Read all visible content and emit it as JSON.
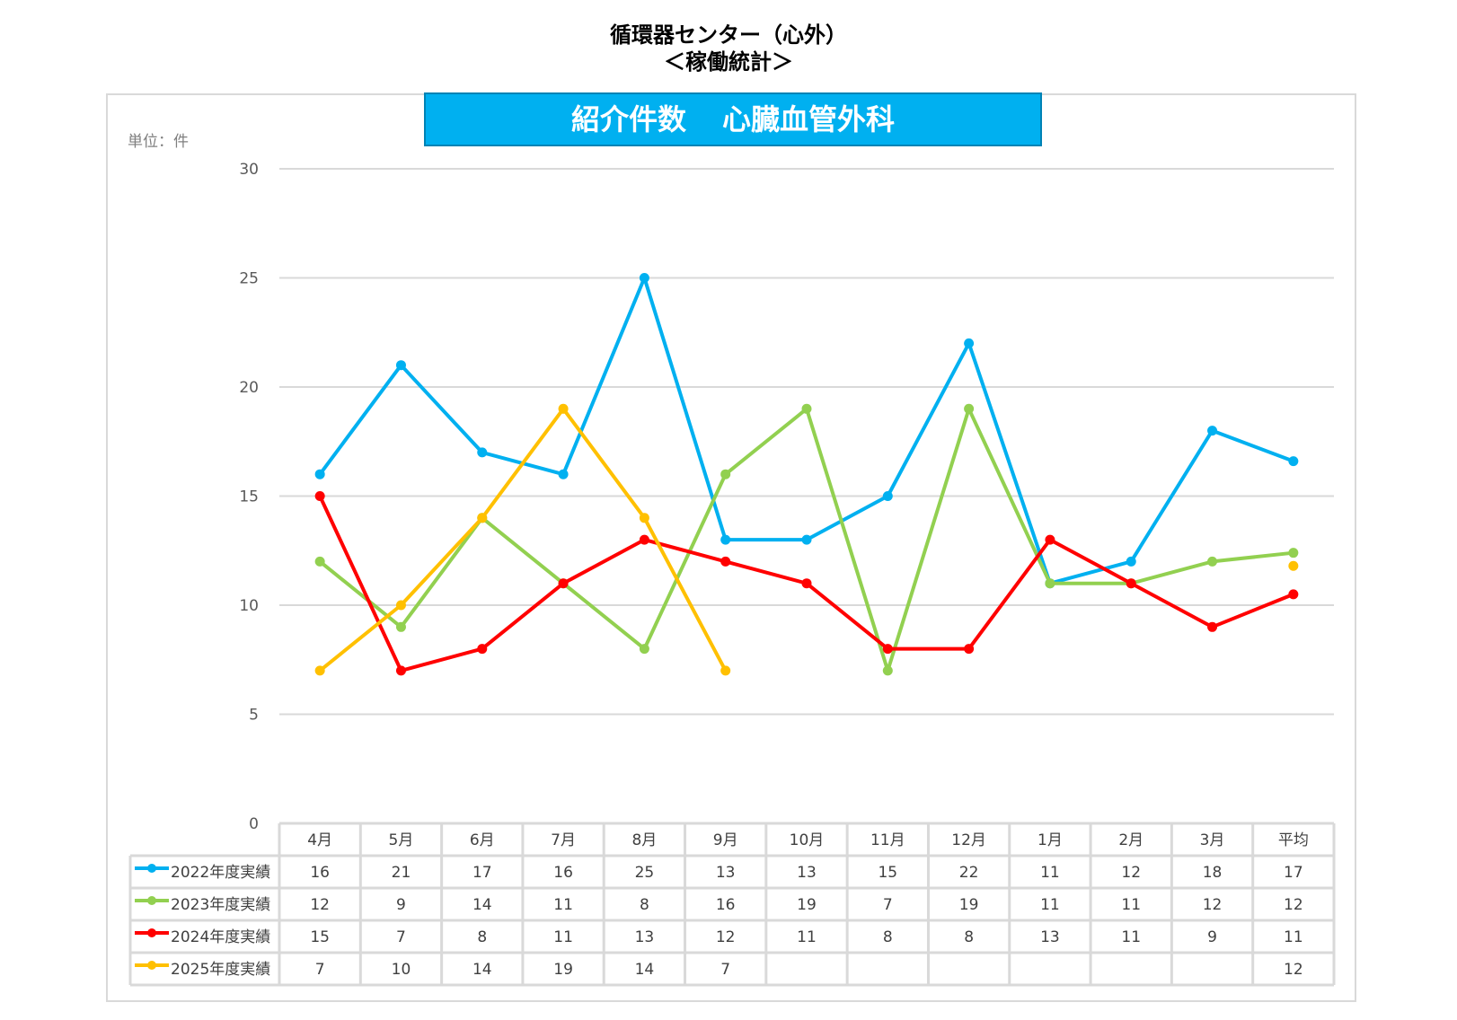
{
  "header": {
    "line1": "循環器センター（心外）",
    "line2": "＜稼働統計＞"
  },
  "banner": {
    "left": "紹介件数",
    "right": "心臓血管外科"
  },
  "unit_label": "単位：件",
  "chart_data": {
    "type": "line",
    "title": "紹介件数　心臓血管外科",
    "ylim": [
      0,
      30
    ],
    "yticks": [
      0,
      5,
      10,
      15,
      20,
      25,
      30
    ],
    "grid": true,
    "legend": "data-table-left",
    "categories": [
      "4月",
      "5月",
      "6月",
      "7月",
      "8月",
      "9月",
      "10月",
      "11月",
      "12月",
      "1月",
      "2月",
      "3月",
      "平均"
    ],
    "series": [
      {
        "name": "2022年度実績",
        "color": "#00b0f0",
        "values": [
          16,
          21,
          17,
          16,
          25,
          13,
          13,
          15,
          22,
          11,
          12,
          18,
          16.6
        ],
        "table": [
          "16",
          "21",
          "17",
          "16",
          "25",
          "13",
          "13",
          "15",
          "22",
          "11",
          "12",
          "18",
          "17"
        ],
        "avg_connected": true
      },
      {
        "name": "2023年度実績",
        "color": "#92d050",
        "values": [
          12,
          9,
          14,
          11,
          8,
          16,
          19,
          7,
          19,
          11,
          11,
          12,
          12.4
        ],
        "table": [
          "12",
          "9",
          "14",
          "11",
          "8",
          "16",
          "19",
          "7",
          "19",
          "11",
          "11",
          "12",
          "12"
        ],
        "avg_connected": true
      },
      {
        "name": "2024年度実績",
        "color": "#ff0000",
        "values": [
          15,
          7,
          8,
          11,
          13,
          12,
          11,
          8,
          8,
          13,
          11,
          9,
          10.5
        ],
        "table": [
          "15",
          "7",
          "8",
          "11",
          "13",
          "12",
          "11",
          "8",
          "8",
          "13",
          "11",
          "9",
          "11"
        ],
        "avg_connected": true
      },
      {
        "name": "2025年度実績",
        "color": "#ffc000",
        "values": [
          7,
          10,
          14,
          19,
          14,
          7,
          null,
          null,
          null,
          null,
          null,
          null,
          11.8
        ],
        "table": [
          "7",
          "10",
          "14",
          "19",
          "14",
          "7",
          "",
          "",
          "",
          "",
          "",
          "",
          "12"
        ],
        "avg_connected": false
      }
    ]
  }
}
